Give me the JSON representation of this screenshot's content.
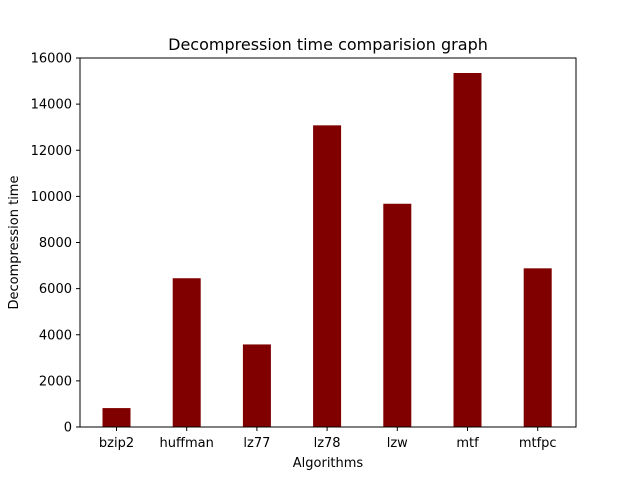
{
  "chart_data": {
    "type": "bar",
    "title": "Decompression time comparision graph",
    "xlabel": "Algorithms",
    "ylabel": "Decompression time",
    "categories": [
      "bzip2",
      "huffman",
      "lz77",
      "lz78",
      "lzw",
      "mtf",
      "mtfpc"
    ],
    "values": [
      820,
      6450,
      3580,
      13080,
      9680,
      15350,
      6880
    ],
    "ylim": [
      0,
      16000
    ],
    "yticks": [
      0,
      2000,
      4000,
      6000,
      8000,
      10000,
      12000,
      14000,
      16000
    ],
    "bar_color": "#800000",
    "grid": false,
    "legend": "none"
  }
}
